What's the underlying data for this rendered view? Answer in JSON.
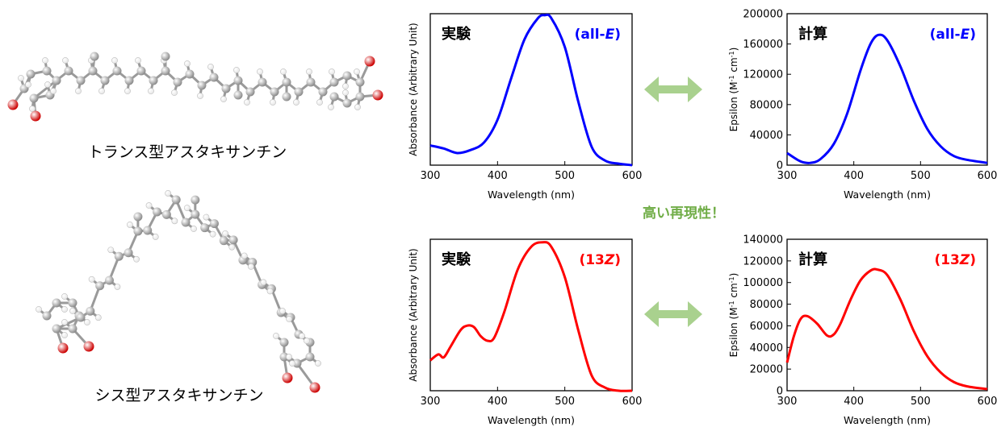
{
  "molecules": {
    "trans_label": "トランス型アスタキサンチン",
    "cis_label": "シス型アスタキサンチン",
    "atom_colors": {
      "carbon": "#8c8c8c",
      "hydrogen": "#e6e6e6",
      "oxygen": "#cc0000"
    }
  },
  "center_note": "高い再現性！",
  "arrow_color": "#a9d18e",
  "note_color": "#70ad47",
  "chart_data": [
    {
      "type": "line",
      "title": "実験",
      "tag": "(all-E)",
      "tag_parts": [
        "(all-",
        "E",
        ")"
      ],
      "xlabel": "Wavelength (nm)",
      "ylabel": "Absorbance (Arbitrary Unit)",
      "xlim": [
        300,
        600
      ],
      "ylim": [
        0,
        1
      ],
      "xticks": [
        300,
        400,
        500,
        600
      ],
      "yticks": [],
      "color": "#0000ff",
      "series": [
        {
          "x": [
            300,
            320,
            340,
            360,
            380,
            400,
            420,
            440,
            460,
            470,
            480,
            500,
            520,
            540,
            560,
            580,
            600
          ],
          "y": [
            0.13,
            0.11,
            0.08,
            0.1,
            0.15,
            0.3,
            0.57,
            0.83,
            0.97,
            0.99,
            0.97,
            0.78,
            0.42,
            0.12,
            0.03,
            0.01,
            0
          ]
        }
      ]
    },
    {
      "type": "line",
      "title": "計算",
      "tag": "(all-E)",
      "tag_parts": [
        "(all-",
        "E",
        ")"
      ],
      "xlabel": "Wavelength (nm)",
      "ylabel": "Epsilon (M-1 cm-1)",
      "ylabel_parts": [
        "Epsilon (M",
        "-1",
        " cm",
        "-1",
        ")"
      ],
      "xlim": [
        300,
        600
      ],
      "ylim": [
        0,
        200000
      ],
      "xticks": [
        300,
        400,
        500,
        600
      ],
      "yticks": [
        0,
        40000,
        80000,
        120000,
        160000,
        200000
      ],
      "color": "#0000ff",
      "series": [
        {
          "x": [
            300,
            320,
            335,
            350,
            370,
            390,
            410,
            425,
            437,
            450,
            470,
            490,
            510,
            530,
            550,
            570,
            600
          ],
          "y": [
            16000,
            5000,
            3000,
            8000,
            28000,
            68000,
            125000,
            160000,
            172000,
            165000,
            130000,
            85000,
            48000,
            25000,
            12000,
            7000,
            3000
          ]
        }
      ]
    },
    {
      "type": "line",
      "title": "実験",
      "tag": "(13Z)",
      "tag_parts": [
        "(13",
        "Z",
        ")"
      ],
      "xlabel": "Wavelength (nm)",
      "ylabel": "Absorbance (Arbitrary Unit)",
      "xlim": [
        300,
        600
      ],
      "ylim": [
        0,
        1
      ],
      "xticks": [
        300,
        400,
        500,
        600
      ],
      "yticks": [],
      "color": "#ff0000",
      "series": [
        {
          "x": [
            300,
            312,
            320,
            330,
            345,
            355,
            365,
            375,
            385,
            395,
            410,
            430,
            450,
            467,
            480,
            500,
            520,
            540,
            560,
            580,
            600
          ],
          "y": [
            0.2,
            0.24,
            0.22,
            0.29,
            0.4,
            0.43,
            0.42,
            0.36,
            0.33,
            0.35,
            0.52,
            0.8,
            0.95,
            0.98,
            0.95,
            0.75,
            0.4,
            0.1,
            0.02,
            0,
            0
          ]
        }
      ]
    },
    {
      "type": "line",
      "title": "計算",
      "tag": "(13Z)",
      "tag_parts": [
        "(13",
        "Z",
        ")"
      ],
      "xlabel": "Wavelength (nm)",
      "ylabel": "Epsilon (M-1 cm-1)",
      "ylabel_parts": [
        "Epsilon (M",
        "-1",
        " cm",
        "-1",
        ")"
      ],
      "xlim": [
        300,
        600
      ],
      "ylim": [
        0,
        140000
      ],
      "xticks": [
        300,
        400,
        500,
        600
      ],
      "yticks": [
        0,
        20000,
        40000,
        60000,
        80000,
        100000,
        120000,
        140000
      ],
      "color": "#ff0000",
      "series": [
        {
          "x": [
            300,
            310,
            320,
            330,
            345,
            360,
            370,
            380,
            395,
            410,
            425,
            435,
            450,
            470,
            490,
            510,
            530,
            550,
            570,
            600
          ],
          "y": [
            26000,
            50000,
            66000,
            69000,
            62000,
            51000,
            52000,
            62000,
            84000,
            102000,
            111000,
            112000,
            107000,
            84000,
            55000,
            32000,
            17000,
            8000,
            4000,
            1500
          ]
        }
      ]
    }
  ]
}
